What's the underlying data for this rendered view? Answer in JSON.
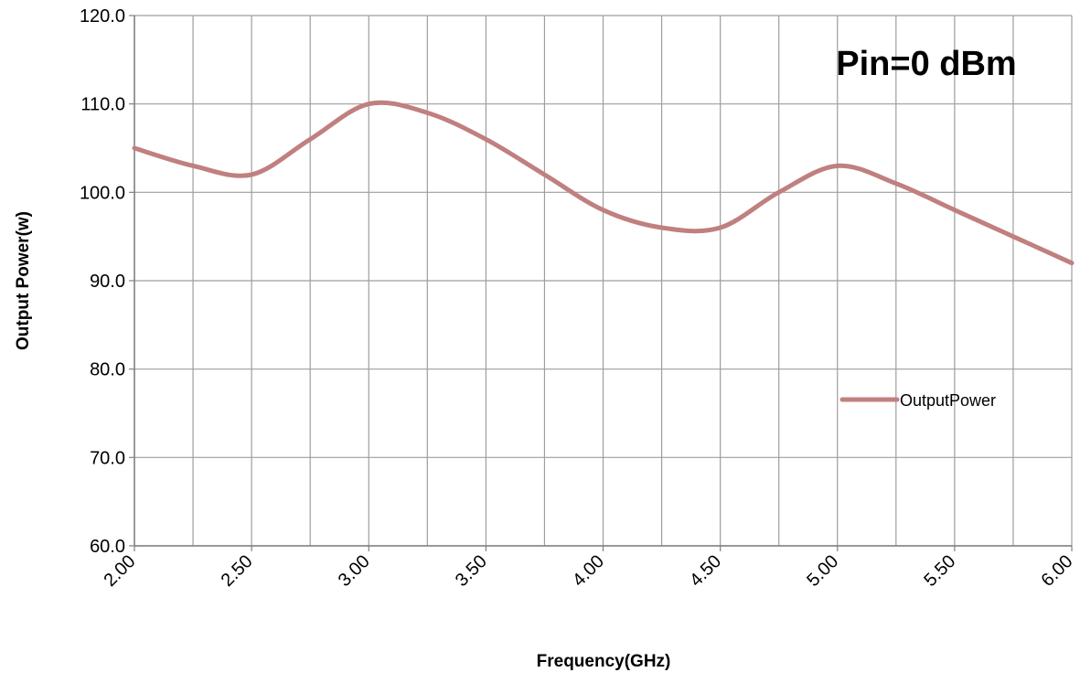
{
  "chart_data": {
    "type": "line",
    "title": "",
    "annotation": "Pin=0 dBm",
    "xlabel": "Frequency(GHz)",
    "ylabel": "Output Power(w)",
    "xlim": [
      2.0,
      6.0
    ],
    "ylim": [
      60.0,
      120.0
    ],
    "x_ticks": [
      "2.00",
      "2.50",
      "3.00",
      "3.50",
      "4.00",
      "4.50",
      "5.00",
      "5.50",
      "6.00"
    ],
    "y_ticks": [
      "60.0",
      "70.0",
      "80.0",
      "90.0",
      "100.0",
      "110.0",
      "120.0"
    ],
    "grid": true,
    "legend": {
      "position": "right",
      "entries": [
        "OutputPower"
      ]
    },
    "series": [
      {
        "name": "OutputPower",
        "color": "#c0807f",
        "x": [
          2.0,
          2.25,
          2.5,
          2.75,
          3.0,
          3.25,
          3.5,
          3.75,
          4.0,
          4.25,
          4.5,
          4.75,
          5.0,
          5.25,
          5.5,
          5.75,
          6.0
        ],
        "y": [
          105.0,
          103.0,
          102.0,
          106.0,
          110.0,
          109.0,
          106.0,
          102.0,
          98.0,
          96.0,
          96.0,
          100.0,
          103.0,
          101.0,
          98.0,
          95.0,
          92.0
        ]
      }
    ]
  },
  "colors": {
    "grid": "#9e9e9e",
    "axis": "#7f7f7f",
    "text": "#000000",
    "series": "#c0807f"
  }
}
